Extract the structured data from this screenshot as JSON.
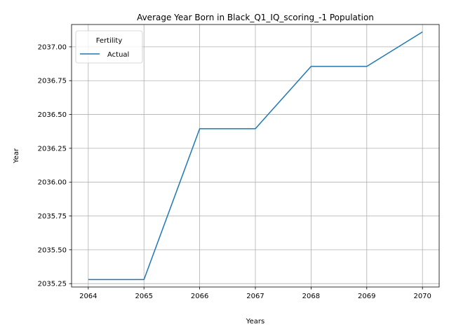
{
  "chart_data": {
    "type": "line",
    "title": "Average Year Born in Black_Q1_IQ_scoring_-1 Population",
    "xlabel": "Years",
    "ylabel": "Year",
    "x": [
      2064,
      2065,
      2066,
      2067,
      2068,
      2069,
      2070
    ],
    "series": [
      {
        "name": "Actual",
        "values": [
          2035.28,
          2035.28,
          2036.395,
          2036.395,
          2036.855,
          2036.855,
          2037.11
        ],
        "color": "#1f77b4"
      }
    ],
    "xlim": [
      2063.7,
      2070.3
    ],
    "ylim": [
      2035.225,
      2037.165
    ],
    "x_ticks": [
      2064,
      2065,
      2066,
      2067,
      2068,
      2069,
      2070
    ],
    "x_tick_labels": [
      "2064",
      "2065",
      "2066",
      "2067",
      "2068",
      "2069",
      "2070"
    ],
    "y_ticks": [
      2035.25,
      2035.5,
      2035.75,
      2036.0,
      2036.25,
      2036.5,
      2036.75,
      2037.0
    ],
    "y_tick_labels": [
      "2035.25",
      "2035.50",
      "2035.75",
      "2036.00",
      "2036.25",
      "2036.50",
      "2036.75",
      "2037.00"
    ],
    "grid": true,
    "legend": {
      "title": "Fertility",
      "placement": "top-left"
    },
    "grid_color": "#b0b0b0"
  }
}
